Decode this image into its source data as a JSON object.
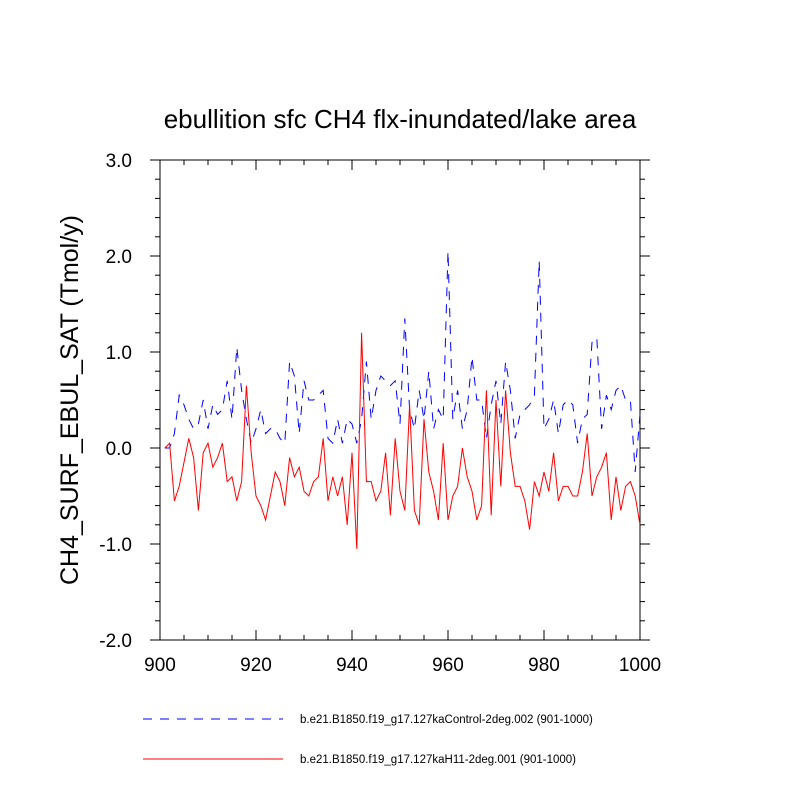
{
  "chart_data": {
    "type": "line",
    "title": "ebullition sfc CH4 flx-inundated/lake area",
    "xlabel": "",
    "ylabel": "CH4_SURF_EBUL_SAT  (Tmol/y)",
    "xlim": [
      900,
      1000
    ],
    "ylim": [
      -2.0,
      3.0
    ],
    "x_ticks": [
      900,
      920,
      940,
      960,
      980,
      1000
    ],
    "x_tick_labels": [
      "900",
      "920",
      "940",
      "960",
      "980",
      "1000"
    ],
    "y_ticks": [
      -2.0,
      -1.0,
      0.0,
      1.0,
      2.0,
      3.0
    ],
    "y_tick_labels": [
      "-2.0",
      "-1.0",
      "0.0",
      "1.0",
      "2.0",
      "3.0"
    ],
    "x_start": 901,
    "x_step": 1,
    "series": [
      {
        "name": "b.e21.B1850.f19_g17.127kaControl-2deg.002 (901-1000)",
        "color": "#0000ff",
        "dash": "dashed",
        "values": [
          0.0,
          0.0,
          0.15,
          0.55,
          0.45,
          0.3,
          0.2,
          0.25,
          0.5,
          0.2,
          0.45,
          0.35,
          0.4,
          0.7,
          0.3,
          1.05,
          0.6,
          0.3,
          0.05,
          0.2,
          0.4,
          0.15,
          0.2,
          0.2,
          0.1,
          0.05,
          0.9,
          0.75,
          0.15,
          0.7,
          0.5,
          0.5,
          0.55,
          0.6,
          0.1,
          0.05,
          0.3,
          0.05,
          0.3,
          0.25,
          0.05,
          0.3,
          0.9,
          0.3,
          0.6,
          0.75,
          0.7,
          0.65,
          0.7,
          0.25,
          1.35,
          0.4,
          0.2,
          0.6,
          0.3,
          0.8,
          0.2,
          0.4,
          0.3,
          2.05,
          0.3,
          0.6,
          0.2,
          0.4,
          0.95,
          0.5,
          0.5,
          0.1,
          0.45,
          0.7,
          0.25,
          0.9,
          0.6,
          0.1,
          0.35,
          0.4,
          0.45,
          0.55,
          1.95,
          0.2,
          0.3,
          0.5,
          0.15,
          0.45,
          0.5,
          0.45,
          0.05,
          0.3,
          0.35,
          1.1,
          1.15,
          0.2,
          0.55,
          0.4,
          0.6,
          0.65,
          0.5,
          0.5,
          -0.25,
          0.35
        ]
      },
      {
        "name": "b.e21.B1850.f19_g17.127kaH11-2deg.001 (901-1000)",
        "color": "#ff0000",
        "dash": "solid",
        "values": [
          0.0,
          0.05,
          -0.55,
          -0.4,
          -0.15,
          0.1,
          -0.1,
          -0.65,
          -0.05,
          0.05,
          -0.2,
          -0.1,
          0.05,
          -0.35,
          -0.3,
          -0.55,
          -0.35,
          0.65,
          -0.05,
          -0.5,
          -0.6,
          -0.75,
          -0.5,
          -0.25,
          -0.35,
          -0.6,
          -0.1,
          -0.3,
          -0.2,
          -0.45,
          -0.5,
          -0.35,
          -0.3,
          0.1,
          -0.55,
          -0.3,
          -0.5,
          -0.3,
          -0.8,
          -0.05,
          -1.05,
          1.2,
          -0.35,
          -0.35,
          -0.55,
          -0.45,
          -0.05,
          -0.7,
          0.1,
          -0.45,
          -0.65,
          0.45,
          -0.65,
          -0.8,
          0.3,
          -0.25,
          -0.45,
          -0.75,
          0.05,
          -0.75,
          -0.5,
          -0.4,
          0.0,
          -0.3,
          -0.45,
          -0.75,
          -0.6,
          0.6,
          -0.7,
          0.5,
          -0.4,
          0.6,
          -0.05,
          -0.4,
          -0.4,
          -0.55,
          -0.85,
          -0.35,
          -0.5,
          -0.25,
          -0.45,
          -0.05,
          -0.55,
          -0.4,
          -0.4,
          -0.5,
          -0.5,
          -0.25,
          0.15,
          -0.5,
          -0.3,
          -0.2,
          -0.05,
          -0.75,
          -0.3,
          -0.65,
          -0.4,
          -0.35,
          -0.5,
          -0.8
        ]
      }
    ],
    "legend_position": "bottom"
  }
}
